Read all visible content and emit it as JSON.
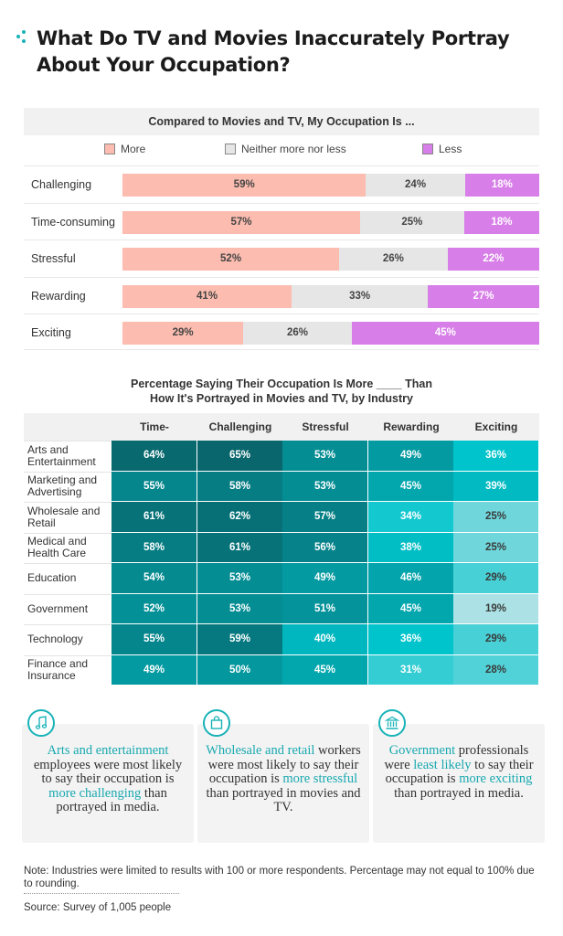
{
  "title": "What Do TV and Movies Inaccurately Portray About Your Occupation?",
  "colors": {
    "more": "#fcbcaf",
    "neither": "#e6e6e6",
    "less": "#d77ee8",
    "accent": "#19a9b0"
  },
  "chart_data": [
    {
      "type": "bar",
      "orientation": "horizontal",
      "stacked": true,
      "title": "Compared to Movies and TV, My Occupation Is ...",
      "legend_position": "top",
      "categories": [
        "Challenging",
        "Time-consuming",
        "Stressful",
        "Rewarding",
        "Exciting"
      ],
      "series": [
        {
          "name": "More",
          "values": [
            59,
            57,
            52,
            41,
            29
          ]
        },
        {
          "name": "Neither more nor less",
          "values": [
            24,
            25,
            26,
            33,
            26
          ]
        },
        {
          "name": "Less",
          "values": [
            18,
            18,
            22,
            27,
            45
          ]
        }
      ],
      "value_suffix": "%"
    },
    {
      "type": "heatmap",
      "title_line1": "Percentage Saying Their Occupation Is More ____ Than",
      "title_line2": "How It's Portrayed in Movies and TV, by Industry",
      "columns": [
        "Time-consuming",
        "Challenging",
        "Stressful",
        "Rewarding",
        "Exciting"
      ],
      "rows": [
        {
          "label": [
            "Arts and",
            "Entertainment"
          ],
          "values": [
            64,
            65,
            53,
            49,
            36
          ]
        },
        {
          "label": [
            "Marketing and",
            "Advertising"
          ],
          "values": [
            55,
            58,
            53,
            45,
            39
          ]
        },
        {
          "label": [
            "Wholesale and",
            "Retail"
          ],
          "values": [
            61,
            62,
            57,
            34,
            25
          ]
        },
        {
          "label": [
            "Medical and",
            "Health Care"
          ],
          "values": [
            58,
            61,
            56,
            38,
            25
          ]
        },
        {
          "label": [
            "Education"
          ],
          "values": [
            54,
            53,
            49,
            46,
            29
          ]
        },
        {
          "label": [
            "Government"
          ],
          "values": [
            52,
            53,
            51,
            45,
            19
          ]
        },
        {
          "label": [
            "Technology"
          ],
          "values": [
            55,
            59,
            40,
            36,
            29
          ]
        },
        {
          "label": [
            "Finance and",
            "Insurance"
          ],
          "values": [
            49,
            50,
            45,
            31,
            28
          ]
        }
      ],
      "value_suffix": "%"
    }
  ],
  "cards": [
    {
      "icon": "music-note-icon",
      "parts": [
        {
          "t": "Arts and entertainment",
          "hl": true
        },
        {
          "t": " employees were most likely to say their occupation is ",
          "hl": false
        },
        {
          "t": "more challenging",
          "hl": true
        },
        {
          "t": " than portrayed in media.",
          "hl": false
        }
      ]
    },
    {
      "icon": "shopping-bag-icon",
      "parts": [
        {
          "t": "Wholesale and retail",
          "hl": true
        },
        {
          "t": " workers were most likely to say their occupation is ",
          "hl": false
        },
        {
          "t": "more stressful",
          "hl": true
        },
        {
          "t": " than portrayed in movies and TV.",
          "hl": false
        }
      ]
    },
    {
      "icon": "government-building-icon",
      "parts": [
        {
          "t": "Government",
          "hl": true
        },
        {
          "t": " professionals were ",
          "hl": false
        },
        {
          "t": "least likely",
          "hl": true
        },
        {
          "t": " to say their occupation is ",
          "hl": false
        },
        {
          "t": "more exciting",
          "hl": true
        },
        {
          "t": " than portrayed in media.",
          "hl": false
        }
      ]
    }
  ],
  "note": "Note: Industries were limited to results with 100 or more respondents. Percentage may not equal to 100% due to rounding.",
  "source": "Source: Survey of 1,005 people"
}
